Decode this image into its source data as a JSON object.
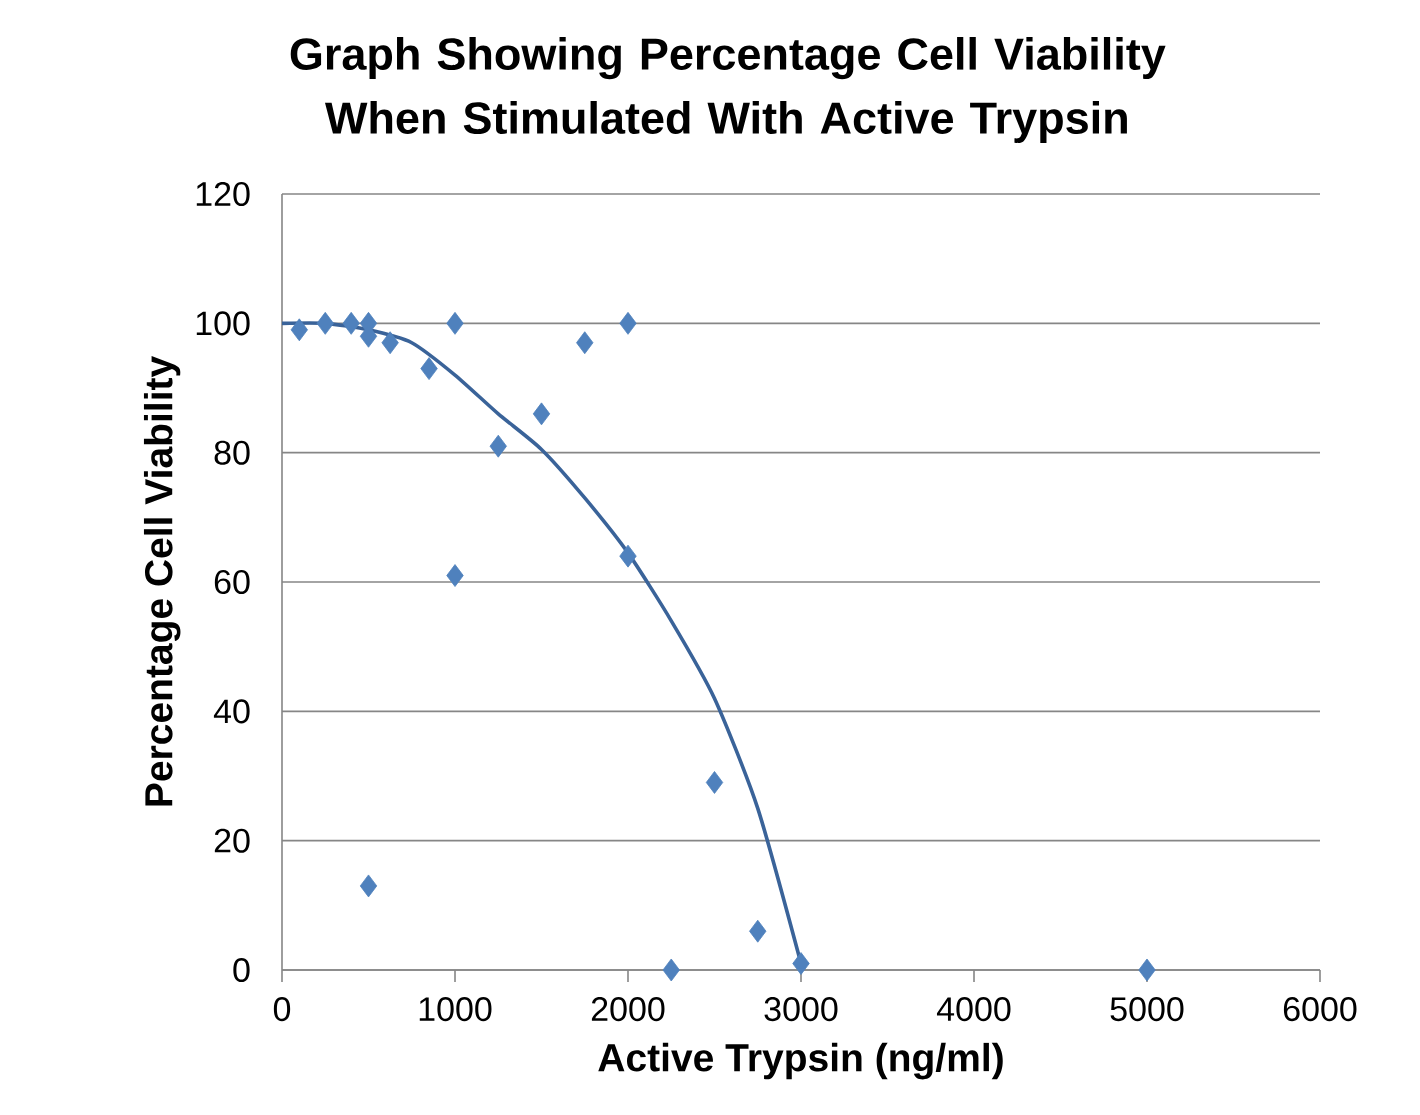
{
  "chart_data": {
    "type": "scatter",
    "title": "Graph Showing Percentage Cell Viability When Stimulated With Active Trypsin",
    "xlabel": "Active Trypsin (ng/ml)",
    "ylabel": "Percentage Cell Viability",
    "xlim": [
      0,
      6000
    ],
    "ylim": [
      0,
      120
    ],
    "xticks": [
      0,
      1000,
      2000,
      3000,
      4000,
      5000,
      6000
    ],
    "yticks": [
      0,
      20,
      40,
      60,
      80,
      100,
      120
    ],
    "grid": "y",
    "marker": "diamond",
    "series": [
      {
        "color": "#4f81bd",
        "x": [
          100,
          250,
          400,
          500,
          500,
          625,
          850,
          1000,
          1000,
          1250,
          1500,
          1750,
          2000,
          2000,
          500,
          2250,
          2500,
          2750,
          3000,
          5000
        ],
        "values": [
          99,
          100,
          100,
          100,
          98,
          97,
          93,
          100,
          61,
          81,
          86,
          97,
          100,
          64,
          13,
          0,
          29,
          6,
          1,
          0
        ]
      },
      {
        "type": "line",
        "marker": "none",
        "color": "#3a6399",
        "x": [
          0,
          250,
          500,
          750,
          1000,
          1250,
          1500,
          1750,
          2000,
          2250,
          2500,
          2750,
          3000
        ],
        "values": [
          100,
          100,
          99,
          97,
          92,
          86,
          80.5,
          73,
          64.5,
          54,
          42,
          25,
          1
        ]
      }
    ]
  }
}
